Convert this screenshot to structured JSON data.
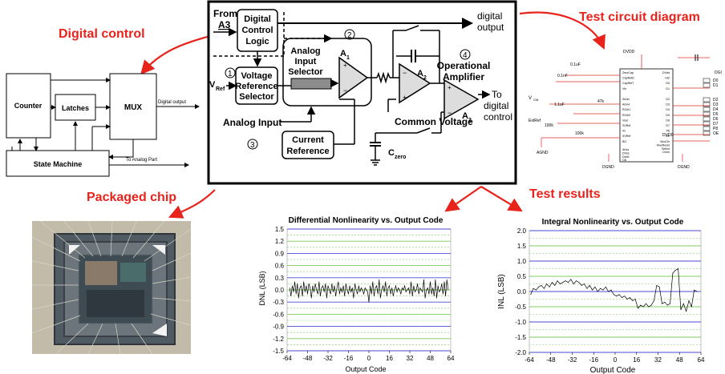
{
  "titles": {
    "digital_control": "Digital control",
    "test_circuit": "Test circuit diagram",
    "packaged_chip": "Packaged chip",
    "test_results": "Test results"
  },
  "block_diagram": {
    "from_a3_line1": "From",
    "from_a3_line2": "A3",
    "dcl_line1": "Digital",
    "dcl_line2": "Control",
    "dcl_line3": "Logic",
    "digital_output_line1": "digital",
    "digital_output_line2": "output",
    "ais_line1": "Analog",
    "ais_line2": "Input",
    "ais_line3": "Selector",
    "vrs_line1": "Voltage",
    "vrs_line2": "Reference",
    "vrs_line3": "Selector",
    "vref": "V",
    "vref_sub": "Ref",
    "analog_input": "Analog Input",
    "current_ref_line1": "Current",
    "current_ref_line2": "Reference",
    "op_amp_line1": "Operational",
    "op_amp_line2": "Amplifier",
    "to_digital_line1": "To",
    "to_digital_line2": "digital",
    "to_digital_line3": "control",
    "common_voltage": "Common Voltage",
    "czero": "C",
    "czero_sub": "zero",
    "a1": "A",
    "a1_sub": "1",
    "a2": "A",
    "a2_sub": "2",
    "a3": "A",
    "a3_sub": "3",
    "num1": "1",
    "num2": "2",
    "num3": "3",
    "num4": "4"
  },
  "digital_block": {
    "counter": "Counter",
    "latches": "Latches",
    "mux": "MUX",
    "state_machine": "State Machine",
    "digital_output": "Digital output",
    "to_analog": "To Analog Part"
  },
  "circuit": {
    "dvdd_top": "DVDD",
    "dvdd_right": "DVDD",
    "agnd": "AGND",
    "dgnd1": "DGND",
    "dgnd2": "DGND",
    "dgnd_top": "DGI",
    "vcm": "V",
    "vcm_sub": "CM",
    "extref": "ExtRef",
    "cap1": "0.1uF",
    "cap2": "0.1nF",
    "cap3": "1.1uF",
    "res1": "47k",
    "res2": "100k",
    "res3": "100k",
    "left_pins": [
      "ZeroCap",
      "CapRefD",
      "CapRefT",
      "Vin",
      "",
      "AVdd",
      "AGnd",
      "RCtrl1",
      "RCtrl2",
      "Vout",
      "SVRef",
      "Iin",
      "SVRef",
      "BG"
    ],
    "left_pins2": [
      "AVss",
      "DVss",
      "Dvdd",
      "Clk"
    ],
    "right_pins": [
      "DVdd",
      "HIZ",
      "D0",
      "D1",
      "",
      "D2",
      "D3",
      "D4",
      "D5",
      "D6",
      "D7",
      "P8",
      "OE"
    ],
    "right_pins2": [
      "MuxOn",
      "MuxReset",
      "Select",
      "Done"
    ],
    "d_labels": [
      "D0",
      "D1",
      "D2",
      "D3",
      "D4",
      "D5",
      "D6",
      "D7",
      "P8",
      "OE"
    ]
  },
  "chart_data": [
    {
      "type": "line",
      "title": "Differential Nonlinearity vs. Output Code",
      "xlabel": "Output Code",
      "ylabel": "DNL (LSB)",
      "xlim": [
        -64,
        64
      ],
      "ylim": [
        -1.5,
        1.5
      ],
      "xticks": [
        "-64",
        "-48",
        "-32",
        "-16",
        "0",
        "16",
        "32",
        "48",
        "64"
      ],
      "yticks": [
        "1.5",
        "1.2",
        "0.9",
        "0.6",
        "0.3",
        "0.0",
        "-0.3",
        "-0.6",
        "-0.9",
        "-1.2",
        "-1.5"
      ],
      "x": [
        -62,
        -61,
        -60,
        -59,
        -58,
        -57,
        -56,
        -55,
        -54,
        -53,
        -52,
        -51,
        -50,
        -49,
        -48,
        -47,
        -46,
        -45,
        -44,
        -43,
        -42,
        -41,
        -40,
        -39,
        -38,
        -37,
        -36,
        -35,
        -34,
        -33,
        -32,
        -31,
        -30,
        -29,
        -28,
        -27,
        -26,
        -25,
        -24,
        -23,
        -22,
        -21,
        -20,
        -19,
        -18,
        -17,
        -16,
        -15,
        -14,
        -13,
        -12,
        -11,
        -10,
        -9,
        -8,
        -7,
        -6,
        -5,
        -4,
        -3,
        -2,
        -1,
        0,
        1,
        2,
        3,
        4,
        5,
        6,
        7,
        8,
        9,
        10,
        11,
        12,
        13,
        14,
        15,
        16,
        17,
        18,
        19,
        20,
        21,
        22,
        23,
        24,
        25,
        26,
        27,
        28,
        29,
        30,
        31,
        32,
        33,
        34,
        35,
        36,
        37,
        38,
        39,
        40,
        41,
        42,
        43,
        44,
        45,
        46,
        47,
        48,
        49,
        50,
        51,
        52,
        53,
        54,
        55,
        56,
        57,
        58,
        59,
        60,
        61,
        62
      ],
      "y": [
        0.05,
        -0.15,
        0.1,
        -0.05,
        0.2,
        -0.1,
        0.15,
        -0.2,
        0.05,
        0.1,
        -0.15,
        0.2,
        -0.05,
        0.1,
        -0.1,
        0.15,
        0.05,
        -0.2,
        0.1,
        -0.05,
        0.15,
        0.0,
        -0.1,
        0.2,
        -0.15,
        0.05,
        0.1,
        -0.05,
        0.15,
        -0.2,
        0.1,
        0.0,
        -0.1,
        0.15,
        -0.05,
        0.1,
        -0.15,
        0.05,
        0.2,
        -0.1,
        0.05,
        -0.05,
        0.1,
        -0.15,
        0.15,
        0.0,
        -0.1,
        0.1,
        -0.05,
        0.05,
        -0.2,
        0.15,
        0.0,
        -0.1,
        0.1,
        -0.05,
        0.05,
        0.0,
        -0.1,
        0.05,
        0.0,
        -0.05,
        -0.3,
        0.1,
        -0.1,
        0.2,
        -0.15,
        0.05,
        0.1,
        -0.1,
        0.25,
        -0.2,
        0.0,
        0.1,
        -0.05,
        0.2,
        -0.15,
        0.05,
        0.1,
        -0.1,
        0.05,
        -0.15,
        0.0,
        0.1,
        -0.05,
        0.05,
        0.0,
        -0.1,
        0.05,
        0.0,
        0.1,
        -0.05,
        0.0,
        0.05,
        -0.1,
        0.2,
        -0.15,
        0.1,
        -0.05,
        0.0,
        0.15,
        -0.1,
        0.05,
        0.0,
        -0.05,
        0.25,
        -0.2,
        0.0,
        0.05,
        -0.1,
        0.2,
        -0.1,
        0.05,
        -0.15,
        0.25,
        -0.2,
        0.1,
        -0.05,
        0.0,
        0.15,
        -0.1,
        0.2,
        -0.15,
        0.25,
        0.0
      ]
    },
    {
      "type": "line",
      "title": "Integral Nonlinearity vs. Output Code",
      "xlabel": "Output Code",
      "ylabel": "INL (LSB)",
      "xlim": [
        -64,
        64
      ],
      "ylim": [
        -2.0,
        2.0
      ],
      "xticks": [
        "-64",
        "-48",
        "-32",
        "-16",
        "0",
        "16",
        "32",
        "48",
        "64"
      ],
      "yticks": [
        "2.0",
        "1.5",
        "1.0",
        "0.5",
        "0.0",
        "-0.5",
        "-1.0",
        "-1.5",
        "-2.0"
      ],
      "x": [
        -63,
        -61,
        -59,
        -57,
        -55,
        -53,
        -51,
        -49,
        -47,
        -45,
        -43,
        -41,
        -39,
        -37,
        -35,
        -33,
        -31,
        -29,
        -27,
        -25,
        -23,
        -21,
        -19,
        -17,
        -15,
        -13,
        -11,
        -9,
        -7,
        -5,
        -3,
        -1,
        1,
        3,
        5,
        7,
        9,
        11,
        13,
        15,
        17,
        19,
        21,
        23,
        25,
        27,
        29,
        31,
        33,
        35,
        37,
        39,
        41,
        43,
        45,
        47,
        49,
        51,
        53,
        55,
        57,
        59,
        61
      ],
      "y": [
        -0.1,
        0.1,
        0.05,
        0.15,
        0.2,
        0.1,
        0.25,
        0.15,
        0.3,
        0.2,
        0.35,
        0.25,
        0.3,
        0.35,
        0.3,
        0.4,
        0.25,
        0.35,
        0.3,
        0.2,
        0.25,
        0.1,
        0.2,
        0.05,
        0.15,
        0.0,
        0.1,
        0.05,
        0.15,
        0.0,
        0.05,
        -0.1,
        -0.15,
        -0.1,
        -0.2,
        -0.15,
        -0.25,
        -0.2,
        -0.3,
        -0.25,
        -0.55,
        -0.45,
        -0.5,
        -0.4,
        -0.5,
        -0.45,
        -0.3,
        0.2,
        0.15,
        -0.4,
        -0.35,
        -0.45,
        -0.4,
        0.6,
        0.7,
        0.75,
        -0.6,
        -0.4,
        -0.65,
        -0.3,
        -0.5,
        0.05,
        0.0
      ]
    }
  ]
}
